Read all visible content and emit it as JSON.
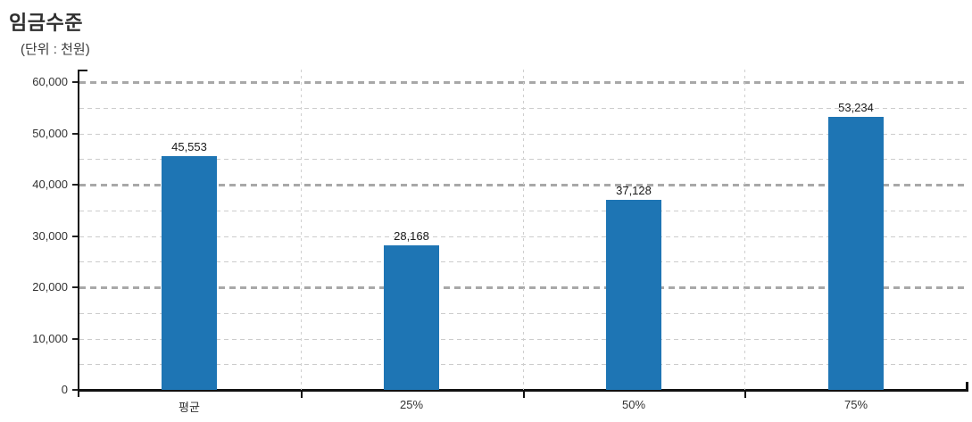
{
  "chart_data": {
    "type": "bar",
    "title": "임금수준",
    "unit_label": "(단위 : 천원)",
    "categories": [
      "평균",
      "25%",
      "50%",
      "75%"
    ],
    "values": [
      45553,
      28168,
      37128,
      53234
    ],
    "value_labels": [
      "45,553",
      "28,168",
      "37,128",
      "53,234"
    ],
    "ylim": [
      0,
      60000
    ],
    "y_tick_step": 10000,
    "y_tick_labels": [
      "0",
      "10,000",
      "20,000",
      "30,000",
      "40,000",
      "50,000",
      "60,000"
    ],
    "y_minor_grid_step": 5000,
    "y_emphasized_grid_step": 20000,
    "grid": "dashed",
    "legend": "none",
    "colors": {
      "bar": "#1e75b4",
      "grid_minor": "#cccccc",
      "grid_major": "#a8a8a8",
      "axis": "#111111",
      "text": "#333333"
    }
  }
}
